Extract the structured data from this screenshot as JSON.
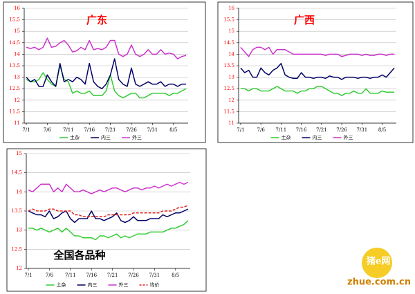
{
  "chart_data": [
    {
      "type": "line",
      "title": "广东",
      "title_color": "#ff0000",
      "tick_color": "#ff0000",
      "categories": [
        "7/1",
        null,
        null,
        null,
        null,
        "7/6",
        null,
        null,
        null,
        null,
        "7/11",
        null,
        null,
        null,
        null,
        "7/16",
        null,
        null,
        null,
        null,
        "7/21",
        null,
        null,
        null,
        null,
        "7/26",
        null,
        null,
        null,
        null,
        "7/31",
        null,
        null,
        null,
        null,
        "8/5",
        null,
        null,
        null
      ],
      "ylim": [
        11,
        16
      ],
      "yticks": [
        11,
        11.5,
        12,
        12.5,
        13,
        13.5,
        14,
        14.5,
        15,
        15.5,
        16
      ],
      "grid": true,
      "series": [
        {
          "name": "土杂",
          "color": "#33cc33",
          "values": [
            12.9,
            12.8,
            12.8,
            12.9,
            13.2,
            12.9,
            12.7,
            12.6,
            13.5,
            12.9,
            12.8,
            12.3,
            12.4,
            12.3,
            12.3,
            12.4,
            12.2,
            12.2,
            12.2,
            12.4,
            13.1,
            12.4,
            12.2,
            12.1,
            12.2,
            12.3,
            12.3,
            12.1,
            12.1,
            12.2,
            12.3,
            12.3,
            12.3,
            12.3,
            12.2,
            12.3,
            12.3,
            12.4,
            12.5
          ]
        },
        {
          "name": "内三",
          "color": "#000066",
          "values": [
            13.0,
            12.8,
            12.9,
            12.6,
            12.6,
            13.1,
            12.8,
            12.6,
            13.6,
            12.8,
            12.9,
            12.8,
            13.0,
            12.9,
            12.7,
            13.6,
            12.8,
            12.6,
            12.5,
            12.7,
            13.1,
            13.8,
            12.9,
            12.7,
            12.6,
            13.4,
            12.7,
            12.6,
            12.7,
            12.8,
            12.7,
            12.7,
            12.8,
            12.6,
            12.7,
            12.7,
            12.6,
            12.7,
            12.7
          ]
        },
        {
          "name": "外三",
          "color": "#cc33cc",
          "values": [
            14.3,
            14.25,
            14.3,
            14.2,
            14.3,
            14.7,
            14.3,
            14.35,
            14.5,
            14.6,
            14.4,
            14.1,
            14.15,
            14.3,
            14.2,
            14.6,
            14.2,
            14.25,
            14.2,
            14.3,
            14.6,
            14.6,
            14.0,
            13.9,
            14.0,
            14.4,
            14.0,
            13.9,
            14.0,
            14.2,
            14.0,
            14.0,
            14.2,
            14.0,
            14.05,
            14.0,
            13.8,
            13.9,
            13.95
          ]
        }
      ]
    },
    {
      "type": "line",
      "title": "广西",
      "title_color": "#ff0000",
      "tick_color": "#ff0000",
      "categories": [
        "7/1",
        null,
        null,
        null,
        null,
        "7/6",
        null,
        null,
        null,
        null,
        "7/11",
        null,
        null,
        null,
        null,
        "7/16",
        null,
        null,
        null,
        null,
        "7/21",
        null,
        null,
        null,
        null,
        "7/26",
        null,
        null,
        null,
        null,
        "7/31",
        null,
        null,
        null,
        null,
        "8/5",
        null,
        null,
        null
      ],
      "ylim": [
        11,
        16
      ],
      "yticks": [
        11,
        11.5,
        12,
        12.5,
        13,
        13.5,
        14,
        14.5,
        15,
        15.5,
        16
      ],
      "grid": true,
      "series": [
        {
          "name": "土杂",
          "color": "#33cc33",
          "values": [
            12.5,
            12.5,
            12.4,
            12.5,
            12.5,
            12.4,
            12.4,
            12.4,
            12.5,
            12.6,
            12.5,
            12.4,
            12.4,
            12.4,
            12.3,
            12.4,
            12.4,
            12.5,
            12.5,
            12.6,
            12.6,
            12.5,
            12.4,
            12.3,
            12.3,
            12.2,
            12.3,
            12.3,
            12.4,
            12.3,
            12.3,
            12.5,
            12.3,
            12.3,
            12.3,
            12.4,
            12.35,
            12.35,
            12.35
          ]
        },
        {
          "name": "内三",
          "color": "#000066",
          "values": [
            13.4,
            13.2,
            13.3,
            13.0,
            13.0,
            13.4,
            13.2,
            13.1,
            13.3,
            13.4,
            13.6,
            13.1,
            13.0,
            12.95,
            12.95,
            13.2,
            13.0,
            13.0,
            12.95,
            13.0,
            13.0,
            12.95,
            13.05,
            13.0,
            13.0,
            12.9,
            13.0,
            13.0,
            13.0,
            12.95,
            13.0,
            13.0,
            12.95,
            13.0,
            13.0,
            13.1,
            13.0,
            13.2,
            13.4
          ]
        },
        {
          "name": "外三",
          "color": "#cc33cc",
          "values": [
            14.3,
            14.1,
            13.9,
            14.2,
            14.3,
            14.3,
            14.2,
            14.3,
            14.0,
            14.2,
            14.2,
            14.2,
            14.1,
            14.0,
            14.0,
            14.0,
            14.0,
            14.0,
            14.0,
            14.0,
            14.0,
            13.95,
            14.0,
            14.0,
            14.0,
            13.9,
            13.95,
            14.0,
            14.0,
            14.0,
            13.95,
            14.0,
            13.95,
            13.95,
            14.0,
            14.0,
            13.95,
            14.0,
            14.0
          ]
        }
      ]
    },
    {
      "type": "line",
      "title": "全国各品种",
      "title_color": "#000000",
      "tick_color": "#ff0000",
      "categories": [
        "7/1",
        null,
        null,
        null,
        null,
        "7/6",
        null,
        null,
        null,
        null,
        "7/11",
        null,
        null,
        null,
        null,
        "7/16",
        null,
        null,
        null,
        null,
        "7/21",
        null,
        null,
        null,
        null,
        "7/26",
        null,
        null,
        null,
        null,
        "7/31",
        null,
        null,
        null,
        null,
        "8/5",
        null,
        null,
        null
      ],
      "ylim": [
        12,
        15
      ],
      "yticks": [
        12,
        12.5,
        13,
        13.5,
        14,
        14.5,
        15
      ],
      "grid": true,
      "series": [
        {
          "name": "土杂",
          "color": "#33cc33",
          "values": [
            13.05,
            13.05,
            13.0,
            13.05,
            13.0,
            12.95,
            13.0,
            13.05,
            12.95,
            13.05,
            12.95,
            12.85,
            12.85,
            12.8,
            12.8,
            12.8,
            12.75,
            12.85,
            12.85,
            12.8,
            12.85,
            12.9,
            12.8,
            12.85,
            12.8,
            12.85,
            12.9,
            12.9,
            12.9,
            12.95,
            12.95,
            12.95,
            12.95,
            13.0,
            13.05,
            13.05,
            13.1,
            13.15,
            13.25
          ]
        },
        {
          "name": "内三",
          "color": "#000066",
          "values": [
            13.5,
            13.45,
            13.4,
            13.4,
            13.35,
            13.5,
            13.3,
            13.35,
            13.45,
            13.5,
            13.3,
            13.2,
            13.3,
            13.3,
            13.3,
            13.5,
            13.3,
            13.3,
            13.25,
            13.3,
            13.35,
            13.45,
            13.25,
            13.2,
            13.25,
            13.35,
            13.25,
            13.25,
            13.25,
            13.3,
            13.3,
            13.3,
            13.4,
            13.35,
            13.4,
            13.45,
            13.45,
            13.5,
            13.55
          ]
        },
        {
          "name": "外三",
          "color": "#cc33cc",
          "values": [
            14.05,
            14.0,
            14.1,
            14.2,
            14.2,
            14.2,
            14.0,
            14.1,
            14.0,
            14.2,
            14.1,
            14.0,
            14.0,
            14.05,
            14.0,
            13.95,
            14.0,
            14.05,
            14.0,
            14.05,
            14.1,
            14.1,
            14.05,
            14.0,
            14.05,
            14.1,
            14.1,
            14.05,
            14.1,
            14.1,
            14.15,
            14.1,
            14.15,
            14.2,
            14.15,
            14.2,
            14.25,
            14.2,
            14.25
          ]
        },
        {
          "name": "均价",
          "color": "#e02020",
          "dash": true,
          "values": [
            13.5,
            13.55,
            13.5,
            13.5,
            13.5,
            13.55,
            13.55,
            13.5,
            13.5,
            13.5,
            13.5,
            13.4,
            13.4,
            13.35,
            13.35,
            13.35,
            13.35,
            13.35,
            13.35,
            13.4,
            13.4,
            13.4,
            13.4,
            13.4,
            13.4,
            13.45,
            13.45,
            13.45,
            13.45,
            13.45,
            13.45,
            13.45,
            13.5,
            13.5,
            13.5,
            13.55,
            13.6,
            13.6,
            13.65
          ]
        }
      ]
    }
  ],
  "watermark": {
    "brand": "猪e网",
    "site": "zhue.com.cn"
  }
}
